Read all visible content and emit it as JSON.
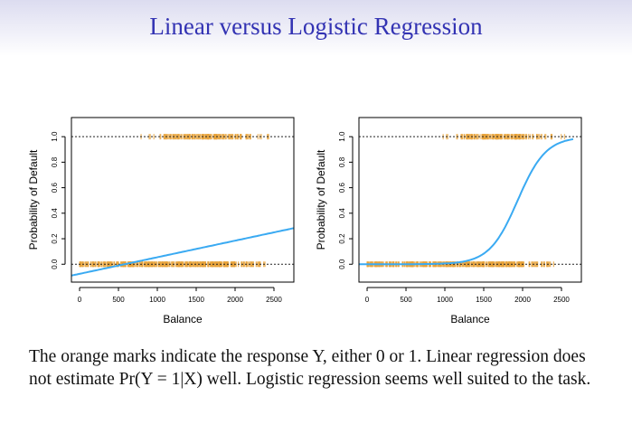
{
  "slide": {
    "title": "Linear versus Logistic Regression",
    "caption": "The orange marks indicate the response Y, either 0 or 1. Linear regression does not estimate Pr(Y = 1|X) well. Logistic regression seems well suited to the task."
  },
  "chart_data": [
    {
      "type": "scatter",
      "title": "",
      "xlabel": "Balance",
      "ylabel": "Probability of Default",
      "xlim": [
        -105,
        2756
      ],
      "ylim": [
        -0.14,
        1.15
      ],
      "xticks": [
        "0",
        "500",
        "1000",
        "1500",
        "2000",
        "2500"
      ],
      "yticks": [
        "0.0",
        "0.2",
        "0.4",
        "0.6",
        "0.8",
        "1.0"
      ],
      "reference_lines": [
        0,
        1
      ],
      "response_marks": {
        "y0_balance_range": [
          0,
          2400
        ],
        "y1_balance_range": [
          650,
          2650
        ],
        "color": "#e8a33a"
      },
      "fit": {
        "name": "Linear regression",
        "color": "#3aaaf2",
        "intercept": -0.0752,
        "slope": 0.00013
      }
    },
    {
      "type": "scatter",
      "title": "",
      "xlabel": "Balance",
      "ylabel": "Probability of Default",
      "xlim": [
        -105,
        2756
      ],
      "ylim": [
        -0.14,
        1.15
      ],
      "xticks": [
        "0",
        "500",
        "1000",
        "1500",
        "2000",
        "2500"
      ],
      "yticks": [
        "0.0",
        "0.2",
        "0.4",
        "0.6",
        "0.8",
        "1.0"
      ],
      "reference_lines": [
        0,
        1
      ],
      "response_marks": {
        "y0_balance_range": [
          0,
          2400
        ],
        "y1_balance_range": [
          650,
          2650
        ],
        "color": "#e8a33a"
      },
      "fit": {
        "name": "Logistic regression",
        "color": "#3aaaf2",
        "intercept": -10.65,
        "slope": 0.0055,
        "x_end": 2650
      }
    }
  ]
}
